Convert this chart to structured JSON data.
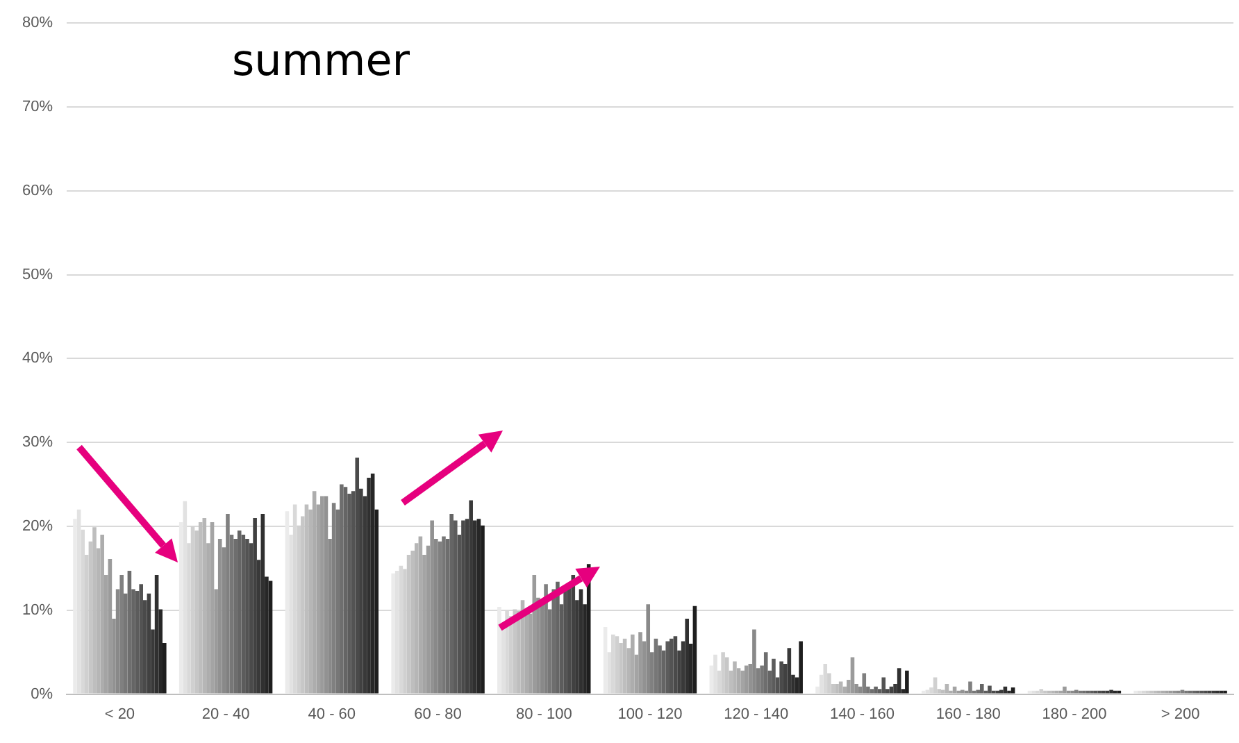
{
  "chart_data": {
    "type": "bar",
    "title": "summer",
    "categories": [
      "< 20",
      "20 - 40",
      "40 - 60",
      "60 - 80",
      "80 - 100",
      "100 - 120",
      "120 - 140",
      "140 - 160",
      "160 - 180",
      "180 - 200",
      "> 200"
    ],
    "ylim": [
      0,
      80
    ],
    "yticks": [
      {
        "value": 0,
        "label": "0%"
      },
      {
        "value": 10,
        "label": "10%"
      },
      {
        "value": 20,
        "label": "20%"
      },
      {
        "value": 30,
        "label": "30%"
      },
      {
        "value": 40,
        "label": "40%"
      },
      {
        "value": 50,
        "label": "50%"
      },
      {
        "value": 60,
        "label": "60%"
      },
      {
        "value": 70,
        "label": "70%"
      },
      {
        "value": 80,
        "label": "80%"
      }
    ],
    "grid": "y",
    "legend": false,
    "series": [
      {
        "color": "#ebebeb",
        "values": [
          20.9,
          20.5,
          21.8,
          14.4,
          10.4,
          8.0,
          3.4,
          0.9,
          0.4,
          0.4,
          0.4
        ]
      },
      {
        "color": "#e2e2e2",
        "values": [
          22.0,
          23,
          19.0,
          14.7,
          8.0,
          5.0,
          4.7,
          2.3,
          0.5,
          0.4,
          0.4
        ]
      },
      {
        "color": "#d9d9d9",
        "values": [
          19.6,
          18,
          22.6,
          15.3,
          9.9,
          7.1,
          2.8,
          3.6,
          0.8,
          0.4,
          0.4
        ]
      },
      {
        "color": "#d0d0d0",
        "values": [
          16.6,
          20,
          20.1,
          14.9,
          9.3,
          6.9,
          5.0,
          2.5,
          2.0,
          0.6,
          0.4
        ]
      },
      {
        "color": "#c7c7c7",
        "values": [
          18.2,
          19.5,
          21.2,
          16.6,
          10.1,
          6.1,
          4.4,
          1.2,
          0.6,
          0.4,
          0.4
        ]
      },
      {
        "color": "#bebebe",
        "values": [
          19.9,
          20.5,
          22.6,
          17.1,
          9.9,
          6.6,
          2.8,
          1.2,
          0.5,
          0.4,
          0.4
        ]
      },
      {
        "color": "#b6b6b6",
        "values": [
          17.4,
          21,
          22.0,
          18.0,
          11.2,
          5.5,
          3.9,
          1.5,
          1.2,
          0.4,
          0.4
        ]
      },
      {
        "color": "#adadad",
        "values": [
          19.0,
          18,
          24.2,
          18.8,
          9.6,
          7.1,
          3.1,
          0.9,
          0.4,
          0.4,
          0.4
        ]
      },
      {
        "color": "#a4a4a4",
        "values": [
          14.2,
          20.5,
          22.6,
          16.6,
          9.6,
          4.7,
          2.8,
          1.7,
          0.9,
          0.4,
          0.4
        ]
      },
      {
        "color": "#9b9b9b",
        "values": [
          16.1,
          12.5,
          23.6,
          17.7,
          14.2,
          7.4,
          3.4,
          4.4,
          0.4,
          0.9,
          0.4
        ]
      },
      {
        "color": "#929292",
        "values": [
          9.0,
          18.5,
          23.6,
          20.7,
          11.5,
          6.3,
          3.6,
          1.2,
          0.5,
          0.4,
          0.4
        ]
      },
      {
        "color": "#898989",
        "values": [
          12.5,
          17.5,
          18.5,
          18.5,
          11.2,
          10.7,
          7.7,
          0.9,
          0.4,
          0.4,
          0.4
        ]
      },
      {
        "color": "#808080",
        "values": [
          14.2,
          21.5,
          22.8,
          18.2,
          13.1,
          5.0,
          3.1,
          2.5,
          1.5,
          0.5,
          0.5
        ]
      },
      {
        "color": "#777777",
        "values": [
          12.0,
          19,
          22.0,
          18.8,
          10.1,
          6.6,
          3.4,
          0.9,
          0.4,
          0.4,
          0.4
        ]
      },
      {
        "color": "#6e6e6e",
        "values": [
          14.7,
          18.5,
          25.0,
          18.5,
          12.5,
          5.8,
          5.0,
          0.6,
          0.5,
          0.4,
          0.4
        ]
      },
      {
        "color": "#656565",
        "values": [
          12.5,
          19.5,
          24.7,
          21.5,
          13.4,
          5.2,
          2.8,
          0.9,
          1.2,
          0.4,
          0.4
        ]
      },
      {
        "color": "#5c5c5c",
        "values": [
          12.3,
          19,
          23.9,
          20.7,
          10.7,
          6.3,
          4.2,
          0.6,
          0.4,
          0.4,
          0.4
        ]
      },
      {
        "color": "#535353",
        "values": [
          13.1,
          18.5,
          24.2,
          19.0,
          12.5,
          6.6,
          2.0,
          2.0,
          1.0,
          0.4,
          0.4
        ]
      },
      {
        "color": "#4a4a4a",
        "values": [
          11.2,
          18,
          28.2,
          20.7,
          13.1,
          6.9,
          3.9,
          0.6,
          0.4,
          0.4,
          0.4
        ]
      },
      {
        "color": "#414141",
        "values": [
          12.0,
          21,
          24.5,
          20.9,
          14.2,
          5.2,
          3.6,
          0.9,
          0.4,
          0.4,
          0.4
        ]
      },
      {
        "color": "#393939",
        "values": [
          7.7,
          16,
          23.6,
          23.1,
          11.2,
          6.3,
          5.5,
          1.2,
          0.5,
          0.4,
          0.4
        ]
      },
      {
        "color": "#303030",
        "values": [
          14.2,
          21.5,
          25.8,
          20.7,
          12.5,
          9.0,
          2.3,
          3.1,
          0.9,
          0.5,
          0.4
        ]
      },
      {
        "color": "#272727",
        "values": [
          10.1,
          14,
          26.3,
          20.9,
          10.7,
          6.0,
          2.0,
          0.6,
          0.4,
          0.4,
          0.4
        ]
      },
      {
        "color": "#1e1e1e",
        "values": [
          6.1,
          13.5,
          22.0,
          20.1,
          15.5,
          10.5,
          6.3,
          2.8,
          0.8,
          0.4,
          0.4
        ]
      }
    ]
  }
}
